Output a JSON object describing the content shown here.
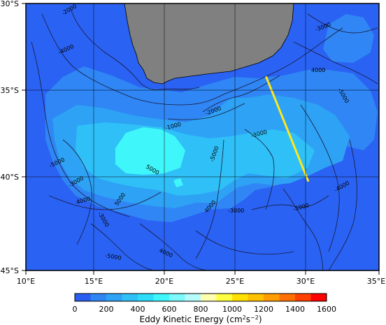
{
  "map": {
    "lat_labels": [
      "30°S",
      "35°S",
      "40°S",
      "45°S"
    ],
    "lon_labels": [
      "10°E",
      "15°E",
      "20°E",
      "25°E",
      "30°E",
      "35°E"
    ],
    "contour_labels": [
      "-2000",
      "-4000",
      "-3000",
      "4000",
      "-5000",
      "-1000",
      "-2000",
      "-3000",
      "-5000",
      "5000",
      "-5000",
      "-3000",
      "-3000",
      "4000",
      "-4000",
      "-3000",
      "4000",
      "5000",
      "-5000",
      "4000",
      "-5000"
    ],
    "transect": {
      "start": {
        "lon": 27.0,
        "lat": -34.1
      },
      "end": {
        "lon": 30.0,
        "lat": -40.0
      },
      "color": "#ffe81a"
    },
    "colors": {
      "land": "#808080",
      "ocean_base": "#2e6af5"
    }
  },
  "colorbar": {
    "title_prefix": "Eddy Kinetic Energy (cm",
    "title_sup1": "2",
    "title_mid": "s",
    "title_sup2": "−2",
    "title_suffix": ")",
    "tick_labels": [
      "0",
      "200",
      "400",
      "600",
      "800",
      "1000",
      "1200",
      "1400",
      "1600"
    ],
    "colors": [
      "#2a5ef0",
      "#2f86f3",
      "#2ea2f5",
      "#2fc0f7",
      "#2ddcf8",
      "#3ff6fb",
      "#7df9fb",
      "#b6fbfb",
      "#ffffb0",
      "#ffff40",
      "#ffe000",
      "#ffc000",
      "#ff9c00",
      "#ff7000",
      "#ff4000",
      "#ff0000"
    ]
  }
}
